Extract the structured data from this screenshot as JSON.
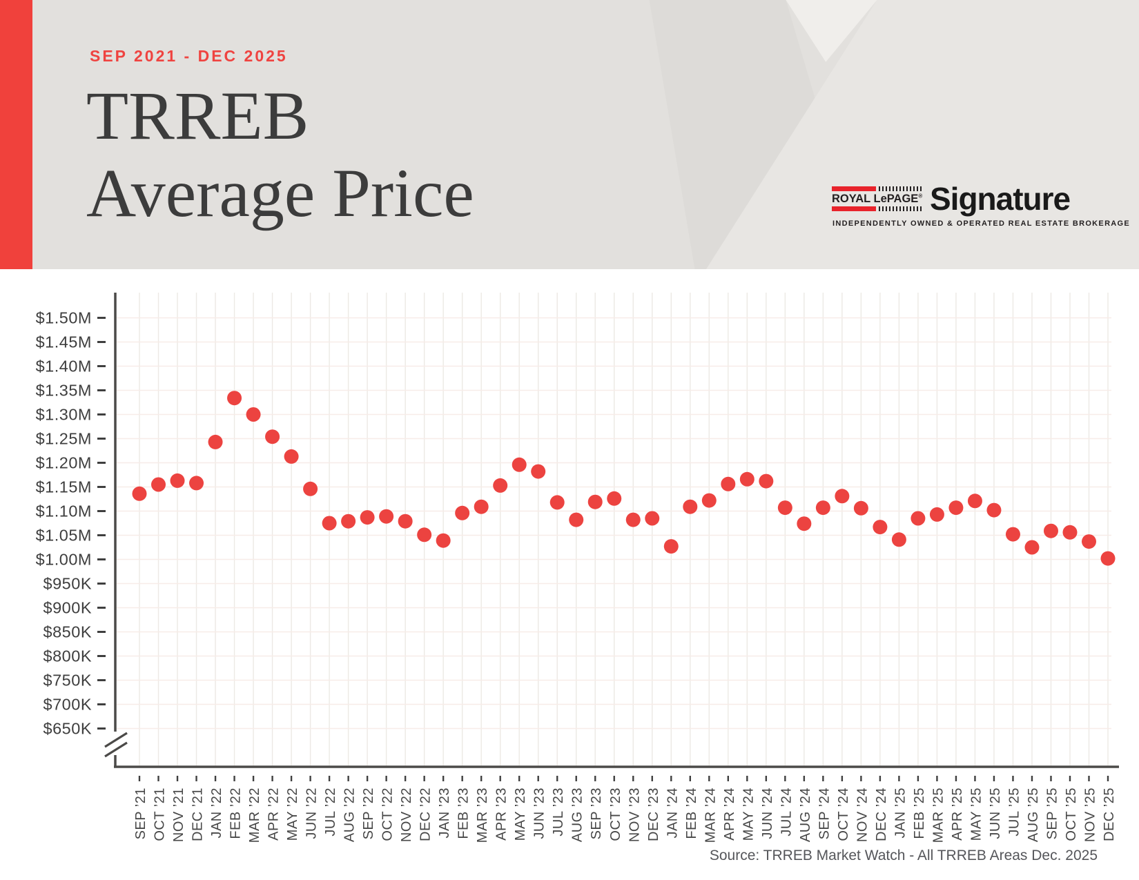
{
  "page": {
    "background": "#FFFFFF"
  },
  "header": {
    "eyebrow": "SEP 2021 - DEC 2025",
    "title_line1": "TRREB",
    "title_line2": "Average Price",
    "background": "#E2E0DD",
    "accent_bar_color": "#F0413C",
    "accent_text_color": "#EF4340"
  },
  "logo": {
    "brand": "ROYAL LePAGE",
    "trademark": "®",
    "name": "Signature",
    "tagline": "INDEPENDENTLY OWNED & OPERATED REAL ESTATE BROKERAGE",
    "red": "#E8232B"
  },
  "source_note": "Source: TRREB Market Watch - All TRREB Areas Dec. 2025",
  "chart_data": {
    "type": "scatter",
    "title": "TRREB Average Price",
    "subtitle_range": "SEP 2021 - DEC 2025",
    "x": [
      "SEP ’21",
      "OCT ’21",
      "NOV ’21",
      "DEC ’21",
      "JAN ’22",
      "FEB ’22",
      "MAR ’22",
      "APR ’22",
      "MAY ’22",
      "JUN ’22",
      "JUL ’22",
      "AUG ’22",
      "SEP ’22",
      "OCT ’22",
      "NOV ’22",
      "DEC ’22",
      "JAN ’23",
      "FEB ’23",
      "MAR ’23",
      "APR ’23",
      "MAY ’23",
      "JUN ’23",
      "JUL ’23",
      "AUG ’23",
      "SEP ’23",
      "OCT ’23",
      "NOV ’23",
      "DEC ’23",
      "JAN ’24",
      "FEB ’24",
      "MAR ’24",
      "APR ’24",
      "MAY ’24",
      "JUN ’24",
      "JUL ’24",
      "AUG ’24",
      "SEP ’24",
      "OCT ’24",
      "NOV ’24",
      "DEC ’24",
      "JAN ’25",
      "FEB ’25",
      "MAR ’25",
      "APR ’25",
      "MAY ’25",
      "JUN ’25",
      "JUL ’25",
      "AUG ’25",
      "SEP ’25",
      "OCT ’25",
      "NOV ’25",
      "DEC ’25"
    ],
    "values_millions": [
      1.136,
      1.155,
      1.163,
      1.158,
      1.243,
      1.334,
      1.3,
      1.254,
      1.213,
      1.146,
      1.075,
      1.079,
      1.087,
      1.089,
      1.079,
      1.051,
      1.039,
      1.096,
      1.109,
      1.153,
      1.196,
      1.182,
      1.118,
      1.082,
      1.119,
      1.126,
      1.082,
      1.085,
      1.027,
      1.109,
      1.122,
      1.156,
      1.166,
      1.162,
      1.107,
      1.074,
      1.107,
      1.131,
      1.106,
      1.067,
      1.041,
      1.085,
      1.093,
      1.107,
      1.121,
      1.102,
      1.052,
      1.025,
      1.059,
      1.056,
      1.037,
      1.002
    ],
    "y_axis": {
      "max": 1.5,
      "min_shown": 0.65,
      "step": 0.05,
      "unit": "CAD",
      "axis_break": true
    },
    "y_tick_labels": [
      "$1.50M",
      "$1.45M",
      "$1.40M",
      "$1.35M",
      "$1.30M",
      "$1.25M",
      "$1.20M",
      "$1.15M",
      "$1.10M",
      "$1.05M",
      "$1.00M",
      "$950K",
      "$900K",
      "$850K",
      "$800K",
      "$750K",
      "$700K",
      "$650K"
    ],
    "y_tick_values": [
      1.5,
      1.45,
      1.4,
      1.35,
      1.3,
      1.25,
      1.2,
      1.15,
      1.1,
      1.05,
      1.0,
      0.95,
      0.9,
      0.85,
      0.8,
      0.75,
      0.7,
      0.65
    ],
    "grid": true,
    "legend": false,
    "colors": {
      "point": "#EC4340",
      "grid_horizontal": "#F7ECE8",
      "grid_vertical": "#ECE9E4",
      "axis": "#4B4A48",
      "tick": "#3F3F3F"
    }
  }
}
